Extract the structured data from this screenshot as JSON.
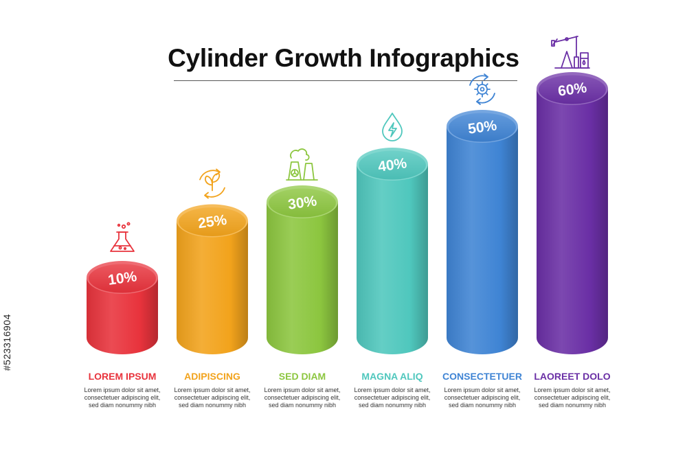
{
  "title": "Cylinder Growth Infographics",
  "stock_id": "#523316904",
  "chart_data": {
    "type": "bar",
    "title": "Cylinder Growth Infographics",
    "categories": [
      "LOREM IPSUM",
      "ADIPISCING",
      "SED DIAM",
      "MAGNA ALIQ",
      "CONSECTETUER",
      "LAOREET DOLO"
    ],
    "values": [
      10,
      25,
      30,
      40,
      50,
      60
    ],
    "data_labels": [
      "10%",
      "25%",
      "30%",
      "40%",
      "50%",
      "60%"
    ],
    "colors": [
      "#e8333c",
      "#f2a31c",
      "#8cc63f",
      "#4fc7bd",
      "#3f84d4",
      "#6a2fa5"
    ],
    "icons": [
      "flask-icon",
      "recycle-leaf-icon",
      "nuclear-plant-icon",
      "water-energy-icon",
      "gear-cycle-icon",
      "oil-pump-icon"
    ],
    "descriptions": [
      [
        "Lorem ipsum dolor sit amet,",
        "consectetuer adipiscing elit,",
        "sed diam nonummy nibh"
      ],
      [
        "Lorem ipsum dolor sit amet,",
        "consectetuer adipiscing elit,",
        "sed diam nonummy nibh"
      ],
      [
        "Lorem ipsum dolor sit amet,",
        "consectetuer adipiscing elit,",
        "sed diam nonummy nibh"
      ],
      [
        "Lorem ipsum dolor sit amet,",
        "consectetuer adipiscing elit,",
        "sed diam nonummy nibh"
      ],
      [
        "Lorem ipsum dolor sit amet,",
        "consectetuer adipiscing elit,",
        "sed diam nonummy nibh"
      ],
      [
        "Lorem ipsum dolor sit amet,",
        "consectetuer adipiscing elit,",
        "sed diam nonummy nibh"
      ]
    ],
    "grid": false,
    "legend": "none"
  }
}
